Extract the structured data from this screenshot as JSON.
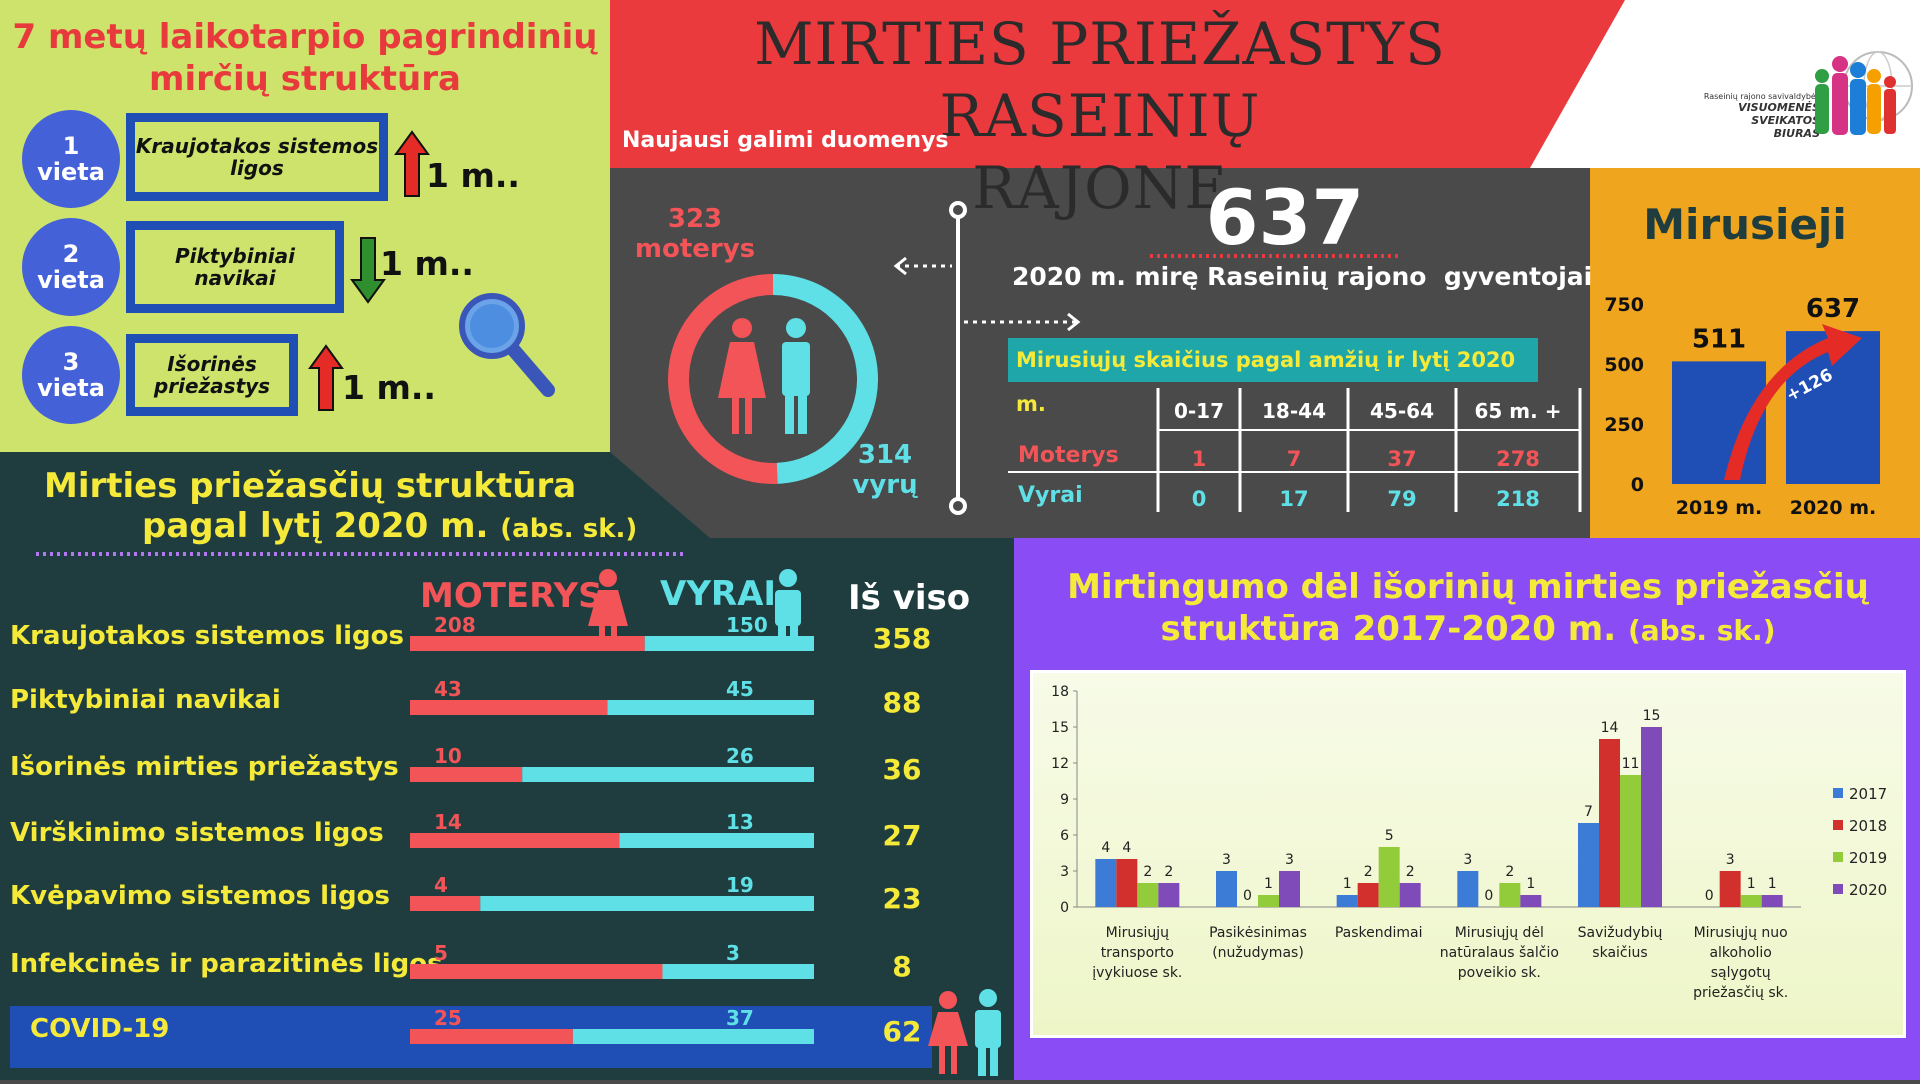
{
  "ranking": {
    "title_line1": "7 metų laikotarpio pagrindinių",
    "title_line2": "mirčių struktūra",
    "items": [
      {
        "place_num": "1",
        "place_word": "vieta",
        "name": "Kraujotakos sistemos ligos",
        "trend": "up",
        "change": "1 m.."
      },
      {
        "place_num": "2",
        "place_word": "vieta",
        "name": "Piktybiniai navikai",
        "trend": "down",
        "change": "1 m.."
      },
      {
        "place_num": "3",
        "place_word": "vieta",
        "name": "Išorinės priežastys",
        "trend": "up",
        "change": "1 m.."
      }
    ],
    "icon": "magnifier-icon"
  },
  "header": {
    "title_line1": "MIRTIES PRIEŽASTYS RASEINIŲ",
    "title_line2": "RAJONE",
    "subtitle": "Naujausi galimi duomenys"
  },
  "logo": {
    "org_line1": "Raseinių rajono savivaldybės",
    "org_line2": "VISUOMENĖS",
    "org_line3": "SVEIKATOS",
    "org_line4": "BIURAS"
  },
  "gender_split": {
    "women_value": "323",
    "women_label": "moterys",
    "men_value": "314",
    "men_label": "vyrų",
    "women": 323,
    "men": 314,
    "colors": {
      "women": "#f25458",
      "men": "#5ee0e6"
    }
  },
  "total": {
    "value": "637",
    "caption": "2020 m. mirę Raseinių rajono  gyventojai"
  },
  "age_table": {
    "title": "Mirusiųjų skaičius pagal amžių ir lytį 2020 m.",
    "columns": [
      "0-17",
      "18-44",
      "45-64",
      "65 m. +"
    ],
    "rows": [
      {
        "label": "Moterys",
        "values": [
          "1",
          "7",
          "37",
          "278"
        ]
      },
      {
        "label": "Vyrai",
        "values": [
          "0",
          "17",
          "79",
          "218"
        ]
      }
    ]
  },
  "deaths_chart": {
    "title": "Mirusieji",
    "type": "bar",
    "categories": [
      "2019 m.",
      "2020 m."
    ],
    "values": [
      511,
      637
    ],
    "ylim": [
      0,
      750
    ],
    "yticks": [
      "0",
      "250",
      "500",
      "750"
    ],
    "value_labels": [
      "511",
      "637"
    ],
    "delta_label": "+126"
  },
  "structure": {
    "title_line1": "Mirties priežasčių struktūra",
    "title_line2": "pagal lytį 2020 m.",
    "title_unit": "(abs. sk.)",
    "col_women": "MOTERYS",
    "col_men": "VYRAI",
    "col_total": "Iš viso",
    "rows": [
      {
        "label": "Kraujotakos sistemos ligos",
        "women": 208,
        "men": 150,
        "women_text": "208",
        "men_text": "150",
        "total": "358"
      },
      {
        "label": "Piktybiniai navikai",
        "women": 43,
        "men": 45,
        "women_text": "43",
        "men_text": "45",
        "total": "88"
      },
      {
        "label": "Išorinės mirties priežastys",
        "women": 10,
        "men": 26,
        "women_text": "10",
        "men_text": "26",
        "total": "36"
      },
      {
        "label": "Virškinimo sistemos ligos",
        "women": 14,
        "men": 13,
        "women_text": "14",
        "men_text": "13",
        "total": "27"
      },
      {
        "label": "Kvėpavimo sistemos ligos",
        "women": 4,
        "men": 19,
        "women_text": "4",
        "men_text": "19",
        "total": "23"
      },
      {
        "label": "Infekcinės ir parazitinės ligos",
        "women": 5,
        "men": 3,
        "women_text": "5",
        "men_text": "3",
        "total": "8"
      },
      {
        "label": "COVID-19",
        "women": 25,
        "men": 37,
        "women_text": "25",
        "men_text": "37",
        "total": "62"
      }
    ]
  },
  "external_chart": {
    "title_line1": "Mirtingumo dėl išorinių mirties priežasčių",
    "title_line2": "struktūra 2017-2020 m.",
    "title_unit": "(abs. sk.)"
  },
  "chart_data": {
    "type": "bar",
    "categories": [
      [
        "Mirusiųjų",
        "transporto",
        "įvykiuose sk."
      ],
      [
        "Pasikėsinimas",
        "(nužudymas)"
      ],
      [
        "Paskendimai"
      ],
      [
        "Mirusiųjų dėl",
        "natūralaus šalčio",
        "poveikio sk."
      ],
      [
        "Savižudybių",
        "skaičius"
      ],
      [
        "Mirusiųjų nuo",
        "alkoholio",
        "sąlygotų",
        "priežasčių sk."
      ]
    ],
    "series": [
      {
        "name": "2017",
        "color": "#3c7bd6",
        "values": [
          4,
          3,
          1,
          3,
          7,
          0
        ]
      },
      {
        "name": "2018",
        "color": "#d1302c",
        "values": [
          4,
          0,
          2,
          0,
          14,
          3
        ]
      },
      {
        "name": "2019",
        "color": "#93cc3a",
        "values": [
          2,
          1,
          5,
          2,
          11,
          1
        ]
      },
      {
        "name": "2020",
        "color": "#7f4bb8",
        "values": [
          2,
          3,
          2,
          1,
          15,
          1
        ]
      }
    ],
    "ylim": [
      0,
      18
    ],
    "yticks": [
      0,
      3,
      6,
      9,
      12,
      15,
      18
    ],
    "legend": "right",
    "grid": false
  }
}
